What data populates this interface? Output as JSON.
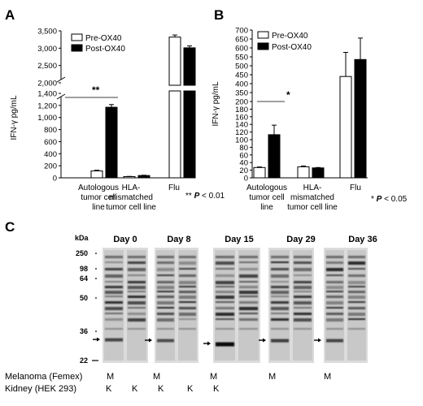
{
  "chart_data": [
    {
      "panel": "A",
      "type": "bar",
      "ylabel": "IFN-γ pg/mL",
      "axis_break": [
        1400,
        2000
      ],
      "ticks_lower": [
        "0",
        "200",
        "400",
        "600",
        "800",
        "1,000",
        "1,200",
        "1,400"
      ],
      "ticks_upper": [
        "2,000",
        "2,500",
        "3,000",
        "3,500"
      ],
      "categories": [
        "Autologous tumor cell line",
        "HLA-mismatched tumor cell line",
        "Flu"
      ],
      "category_lines": [
        [
          "Autologous",
          "tumor cell",
          "line"
        ],
        [
          "HLA-",
          "mismatched",
          "tumor cell line"
        ],
        [
          "Flu"
        ]
      ],
      "series": [
        {
          "name": "Pre-OX40",
          "fill": "#ffffff",
          "values": [
            115,
            20,
            3320
          ],
          "errors": [
            12,
            4,
            60
          ]
        },
        {
          "name": "Post-OX40",
          "fill": "#000000",
          "values": [
            1170,
            38,
            3010
          ],
          "errors": [
            45,
            5,
            55
          ]
        }
      ],
      "significance": "**",
      "note_prefix": "** ",
      "note_p": "P",
      "note_suffix": " < 0.01"
    },
    {
      "panel": "B",
      "type": "bar",
      "ylabel": "IFN-γ pg/mL",
      "ticks": [
        "0",
        "20",
        "40",
        "60",
        "80",
        "100",
        "120",
        "140",
        "160",
        "180",
        "200",
        "350",
        "400",
        "450",
        "500",
        "550",
        "600",
        "650",
        "700"
      ],
      "categories": [
        "Autologous tumor cell line",
        "HLA-mismatched tumor cell line",
        "Flu"
      ],
      "category_lines": [
        [
          "Autologous",
          "tumor cell",
          "line"
        ],
        [
          "HLA-",
          "mismatched",
          "tumor cell line"
        ],
        [
          "Flu"
        ]
      ],
      "series": [
        {
          "name": "Pre-OX40",
          "fill": "#ffffff",
          "values": [
            27,
            29,
            440
          ],
          "errors": [
            1.5,
            2,
            135
          ]
        },
        {
          "name": "Post-OX40",
          "fill": "#000000",
          "values": [
            113,
            26,
            535
          ],
          "errors": [
            25,
            1,
            120
          ]
        }
      ],
      "significance": "*",
      "note_prefix": "* ",
      "note_p": "P",
      "note_suffix": " < 0.05"
    },
    {
      "panel": "C",
      "type": "blot",
      "unit_label": "kDa",
      "markers": [
        "250",
        "98",
        "64",
        "50",
        "36",
        "22"
      ],
      "days": [
        "Day 0",
        "Day 8",
        "Day 15",
        "Day 29",
        "Day 36"
      ],
      "rows": [
        {
          "label": "Melanoma (Femex)",
          "marks": [
            "M",
            "M",
            "M",
            "M",
            "M"
          ]
        },
        {
          "label": "Kidney (HEK 293)",
          "marks": [
            "K",
            "K",
            "K",
            "K",
            "K"
          ]
        }
      ]
    }
  ]
}
